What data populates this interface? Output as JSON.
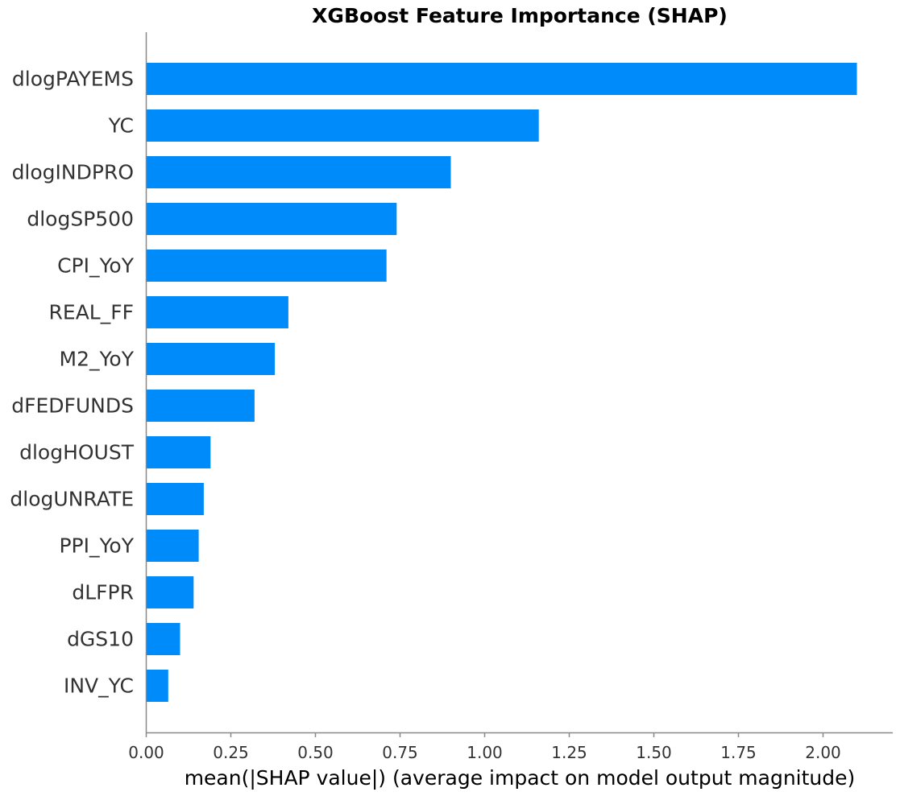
{
  "chart_data": {
    "type": "bar",
    "orientation": "horizontal",
    "title": "XGBoost Feature Importance (SHAP)",
    "xlabel": "mean(|SHAP value|) (average impact on model output magnitude)",
    "ylabel": "",
    "categories": [
      "dlogPAYEMS",
      "YC",
      "dlogINDPRO",
      "dlogSP500",
      "CPI_YoY",
      "REAL_FF",
      "M2_YoY",
      "dFEDFUNDS",
      "dlogHOUST",
      "dlogUNRATE",
      "PPI_YoY",
      "dLFPR",
      "dGS10",
      "INV_YC"
    ],
    "values": [
      2.1,
      1.16,
      0.9,
      0.74,
      0.71,
      0.42,
      0.38,
      0.32,
      0.19,
      0.17,
      0.155,
      0.14,
      0.1,
      0.065
    ],
    "xlim": [
      0,
      2.2
    ],
    "xticks": [
      "0.00",
      "0.25",
      "0.50",
      "0.75",
      "1.00",
      "1.25",
      "1.50",
      "1.75",
      "2.00"
    ],
    "grid": false,
    "bar_color": "#008bfb",
    "axis_color": "#888888"
  }
}
